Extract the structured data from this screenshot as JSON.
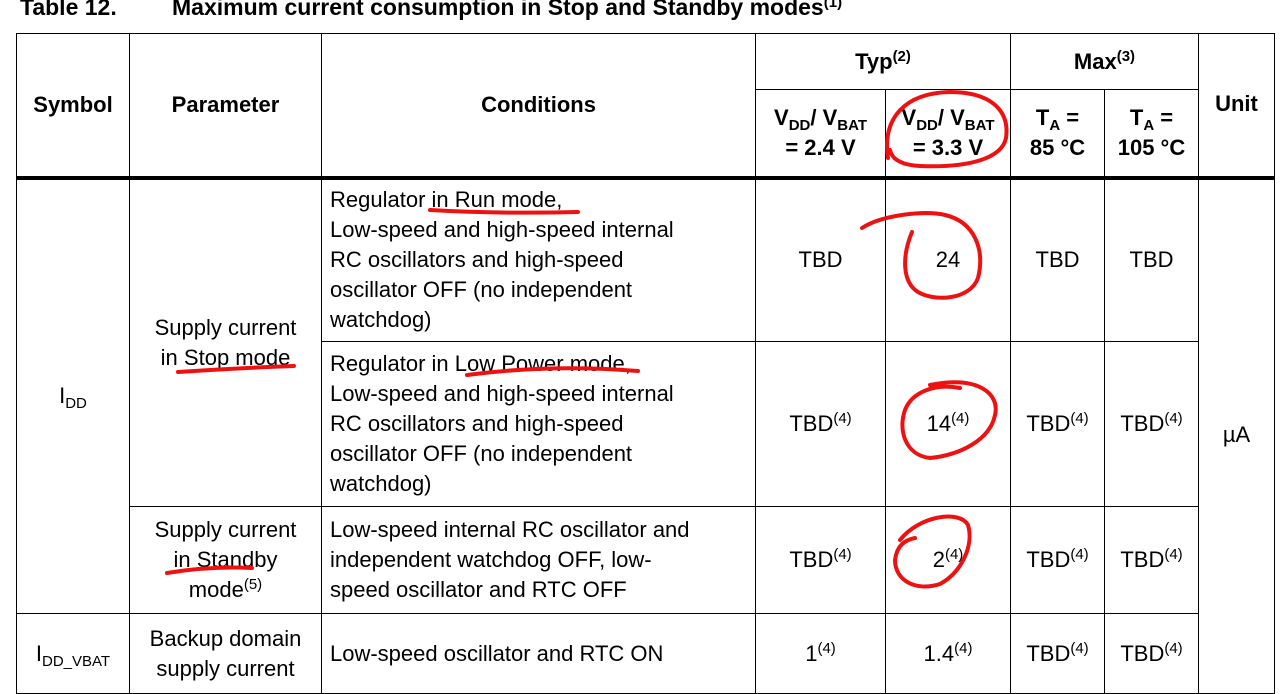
{
  "caption": {
    "number": "Table 12.",
    "title": "Maximum current consumption in Stop and Standby modes",
    "title_note": "(1)"
  },
  "header": {
    "symbol": "Symbol",
    "parameter": "Parameter",
    "conditions": "Conditions",
    "typ": "Typ",
    "typ_note": "(2)",
    "max": "Max",
    "max_note": "(3)",
    "unit": "Unit",
    "vdd1": {
      "v": "V",
      "dd": "DD",
      "slash": "/ V",
      "bat": "BAT",
      "value": "= 2.4 V"
    },
    "vdd2": {
      "v": "V",
      "dd": "DD",
      "slash": "/ V",
      "bat": "BAT",
      "value": "= 3.3 V"
    },
    "ta1": {
      "t": "T",
      "a": "A",
      "eq": " =",
      "value": "85 °C"
    },
    "ta2": {
      "t": "T",
      "a": "A",
      "eq": " =",
      "value": "105 °C"
    }
  },
  "rows": {
    "idd_symbol": {
      "main": "I",
      "sub": "DD"
    },
    "idd_vbat_symbol": {
      "main": "I",
      "sub": "DD_VBAT"
    },
    "stop_param": {
      "line1": "Supply current",
      "pre": "in ",
      "mode": "Stop mode"
    },
    "standby_param": {
      "line1": "Supply current",
      "pre": "in ",
      "mode": "Standby",
      "line3": "mode",
      "note": "(5)"
    },
    "backup_param": {
      "line1": "Backup domain",
      "line2": "supply current"
    },
    "run": {
      "cond1_pre": "Regulator in ",
      "cond1_mode": "Run mode",
      "cond1_post": ",",
      "cond2": "Low-speed and high-speed internal",
      "cond3": "RC oscillators and high-speed",
      "cond4": "oscillator OFF (no independent",
      "cond5": "watchdog)",
      "typ24": "TBD",
      "typ33": "24",
      "max85": "TBD",
      "max105": "TBD"
    },
    "lowpower": {
      "cond1_pre": "Regulator in ",
      "cond1_mode": "Low Power mode",
      "cond1_post": ",",
      "cond2": "Low-speed and high-speed internal",
      "cond3": "RC oscillators and high-speed",
      "cond4": "oscillator OFF (no independent",
      "cond5": "watchdog)",
      "typ24": "TBD",
      "typ33": "14",
      "max85": "TBD",
      "max105": "TBD",
      "note": "(4)"
    },
    "standby": {
      "cond1": "Low-speed internal RC oscillator and",
      "cond2": "independent watchdog OFF, low-",
      "cond3": "speed oscillator and RTC OFF",
      "typ24": "TBD",
      "typ33": "2",
      "max85": "TBD",
      "max105": "TBD",
      "note": "(4)"
    },
    "backup": {
      "cond": "Low-speed oscillator and RTC ON",
      "typ24": "1",
      "typ33": "1.4",
      "max85": "TBD",
      "max105": "TBD",
      "note": "(4)"
    },
    "unit": "µA"
  },
  "annotation_color": "#ee1111"
}
